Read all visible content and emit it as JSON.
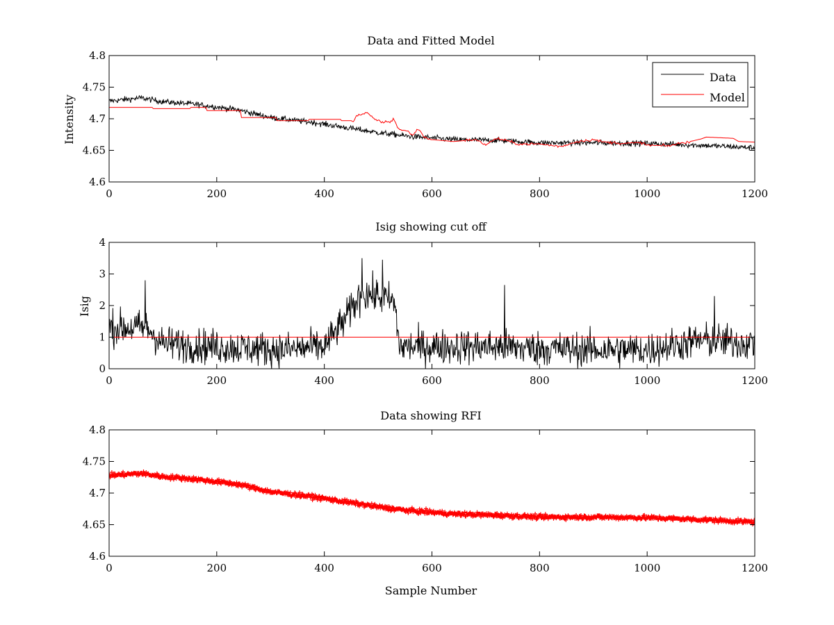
{
  "chart_data": [
    {
      "type": "line",
      "title": "Data and Fitted Model",
      "xlabel": "",
      "ylabel": "Intensity",
      "xlim": [
        0,
        1200
      ],
      "ylim": [
        4.6,
        4.8
      ],
      "xticks": [
        "0",
        "200",
        "400",
        "600",
        "800",
        "1000",
        "1200"
      ],
      "yticks": [
        "4.6",
        "4.65",
        "4.7",
        "4.75",
        "4.8"
      ],
      "grid": false,
      "legend": "top-right",
      "series": [
        {
          "name": "Data",
          "color": "#000000",
          "trend": [
            [
              0,
              4.728
            ],
            [
              60,
              4.733
            ],
            [
              100,
              4.727
            ],
            [
              160,
              4.723
            ],
            [
              240,
              4.714
            ],
            [
              300,
              4.702
            ],
            [
              380,
              4.694
            ],
            [
              440,
              4.686
            ],
            [
              500,
              4.678
            ],
            [
              560,
              4.672
            ],
            [
              640,
              4.667
            ],
            [
              720,
              4.666
            ],
            [
              800,
              4.662
            ],
            [
              900,
              4.662
            ],
            [
              1000,
              4.661
            ],
            [
              1100,
              4.658
            ],
            [
              1200,
              4.654
            ]
          ],
          "noise": 0.0045
        },
        {
          "name": "Model",
          "color": "#ff0000",
          "points": [
            [
              0,
              4.718
            ],
            [
              80,
              4.718
            ],
            [
              80,
              4.716
            ],
            [
              150,
              4.716
            ],
            [
              150,
              4.718
            ],
            [
              180,
              4.718
            ],
            [
              180,
              4.713
            ],
            [
              245,
              4.713
            ],
            [
              245,
              4.702
            ],
            [
              310,
              4.702
            ],
            [
              310,
              4.697
            ],
            [
              370,
              4.697
            ],
            [
              370,
              4.699
            ],
            [
              430,
              4.699
            ],
            [
              430,
              4.697
            ],
            [
              455,
              4.697
            ],
            [
              460,
              4.705
            ],
            [
              470,
              4.707
            ],
            [
              480,
              4.709
            ],
            [
              490,
              4.701
            ],
            [
              505,
              4.695
            ],
            [
              525,
              4.695
            ],
            [
              528,
              4.702
            ],
            [
              535,
              4.688
            ],
            [
              540,
              4.683
            ],
            [
              555,
              4.68
            ],
            [
              565,
              4.674
            ],
            [
              575,
              4.685
            ],
            [
              585,
              4.671
            ],
            [
              600,
              4.667
            ],
            [
              640,
              4.664
            ],
            [
              680,
              4.667
            ],
            [
              700,
              4.659
            ],
            [
              720,
              4.669
            ],
            [
              740,
              4.665
            ],
            [
              760,
              4.66
            ],
            [
              800,
              4.66
            ],
            [
              840,
              4.656
            ],
            [
              870,
              4.664
            ],
            [
              900,
              4.667
            ],
            [
              920,
              4.663
            ],
            [
              960,
              4.661
            ],
            [
              990,
              4.662
            ],
            [
              1000,
              4.658
            ],
            [
              1040,
              4.657
            ],
            [
              1060,
              4.661
            ],
            [
              1080,
              4.664
            ],
            [
              1100,
              4.668
            ],
            [
              1110,
              4.671
            ],
            [
              1160,
              4.669
            ],
            [
              1170,
              4.664
            ],
            [
              1200,
              4.663
            ]
          ],
          "noise": 0.002
        }
      ]
    },
    {
      "type": "line",
      "title": "Isig showing cut off",
      "xlabel": "",
      "ylabel": "Isig",
      "xlim": [
        0,
        1200
      ],
      "ylim": [
        0,
        4
      ],
      "xticks": [
        "0",
        "200",
        "400",
        "600",
        "800",
        "1000",
        "1200"
      ],
      "yticks": [
        "0",
        "1",
        "2",
        "3",
        "4"
      ],
      "grid": false,
      "series": [
        {
          "color": "#000000",
          "trend": [
            [
              0,
              1.3
            ],
            [
              70,
              1.3
            ],
            [
              100,
              0.8
            ],
            [
              200,
              0.7
            ],
            [
              320,
              0.6
            ],
            [
              400,
              0.7
            ],
            [
              440,
              1.6
            ],
            [
              470,
              2.4
            ],
            [
              500,
              2.3
            ],
            [
              530,
              2.1
            ],
            [
              540,
              0.7
            ],
            [
              700,
              0.7
            ],
            [
              900,
              0.6
            ],
            [
              1000,
              0.6
            ],
            [
              1100,
              0.9
            ],
            [
              1200,
              0.8
            ]
          ],
          "noise": 0.55,
          "spikes": [
            [
              67,
              2.8
            ],
            [
              470,
              3.5
            ],
            [
              508,
              3.45
            ],
            [
              735,
              2.65
            ],
            [
              1125,
              2.3
            ]
          ]
        },
        {
          "color": "#ff0000",
          "points": [
            [
              0,
              1
            ],
            [
              1200,
              1
            ]
          ]
        }
      ]
    },
    {
      "type": "scatter",
      "title": "Data showing RFI",
      "xlabel": "Sample Number",
      "ylabel": "",
      "xlim": [
        0,
        1200
      ],
      "ylim": [
        4.6,
        4.8
      ],
      "xticks": [
        "0",
        "200",
        "400",
        "600",
        "800",
        "1000",
        "1200"
      ],
      "yticks": [
        "4.6",
        "4.65",
        "4.7",
        "4.75",
        "4.8"
      ],
      "grid": false,
      "series": [
        {
          "color": "#ff0000",
          "marker": "plus",
          "trend": [
            [
              0,
              4.728
            ],
            [
              60,
              4.731
            ],
            [
              100,
              4.726
            ],
            [
              160,
              4.722
            ],
            [
              240,
              4.714
            ],
            [
              300,
              4.702
            ],
            [
              380,
              4.694
            ],
            [
              440,
              4.686
            ],
            [
              500,
              4.678
            ],
            [
              560,
              4.672
            ],
            [
              640,
              4.667
            ],
            [
              720,
              4.665
            ],
            [
              800,
              4.662
            ],
            [
              900,
              4.662
            ],
            [
              1000,
              4.661
            ],
            [
              1100,
              4.658
            ],
            [
              1200,
              4.654
            ]
          ],
          "noise": 0.0035
        }
      ]
    }
  ]
}
